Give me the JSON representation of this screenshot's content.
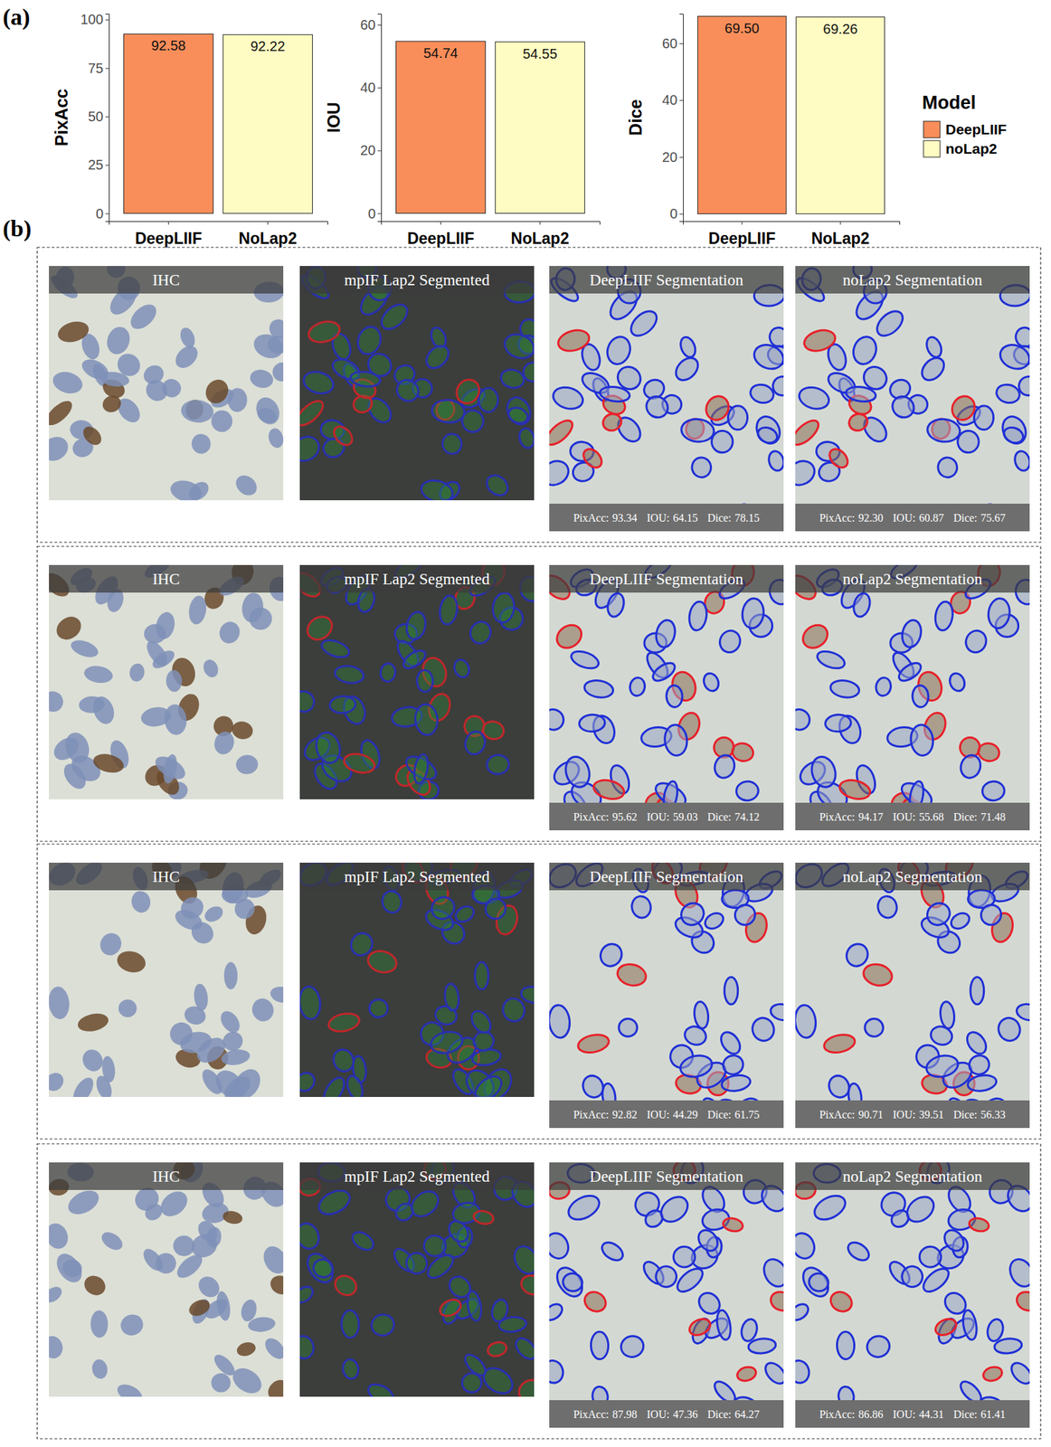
{
  "labels": {
    "a": "(a)",
    "b": "(b)"
  },
  "chart_data": [
    {
      "type": "bar",
      "y_label": "PixAcc",
      "categories": [
        "DeepLIIF",
        "NoLap2"
      ],
      "series": [
        {
          "color": "#f98e5a",
          "values": [
            92.58,
            null
          ]
        },
        {
          "color": "#fefbc3",
          "values": [
            null,
            92.22
          ]
        }
      ],
      "ylim": [
        -4,
        103
      ],
      "yticks": [
        0,
        25,
        50,
        75,
        100
      ],
      "data_labels": true
    },
    {
      "type": "bar",
      "y_label": "IOU",
      "categories": [
        "DeepLIIF",
        "NoLap2"
      ],
      "series": [
        {
          "color": "#f98e5a",
          "values": [
            54.74,
            null
          ]
        },
        {
          "color": "#fefbc3",
          "values": [
            null,
            54.55
          ]
        }
      ],
      "ylim": [
        -2.5,
        63.5
      ],
      "yticks": [
        0,
        20,
        40,
        60
      ],
      "data_labels": true
    },
    {
      "type": "bar",
      "y_label": "Dice",
      "categories": [
        "DeepLIIF",
        "NoLap2"
      ],
      "series": [
        {
          "name": "DeepLIIF",
          "color": "#f98e5a",
          "values": [
            69.5,
            null
          ]
        },
        {
          "name": "noLap2",
          "color": "#fefbc3",
          "values": [
            null,
            69.26
          ]
        }
      ],
      "ylim": [
        -2.6,
        70.4
      ],
      "yticks": [
        0,
        20,
        40,
        60
      ],
      "data_labels": true,
      "legend": "right",
      "legend_title": "Model"
    }
  ],
  "panel_b": {
    "rows": [
      {
        "panels": [
          {
            "title": "IHC"
          },
          {
            "title": "mpIF Lap2 Segmented"
          },
          {
            "title": "DeepLIIF Segmentation",
            "metric_labels": [
              "PixAcc:",
              "IOU:",
              "Dice:"
            ],
            "metrics": [
              93.34,
              64.15,
              78.15
            ]
          },
          {
            "title": "noLap2 Segmentation",
            "metric_labels": [
              "PixAcc:",
              "IOU:",
              "Dice:"
            ],
            "metrics": [
              92.3,
              60.87,
              75.67
            ]
          }
        ]
      },
      {
        "panels": [
          {
            "title": "IHC"
          },
          {
            "title": "mpIF Lap2 Segmented"
          },
          {
            "title": "DeepLIIF Segmentation",
            "metric_labels": [
              "PixAcc:",
              "IOU:",
              "Dice:"
            ],
            "metrics": [
              95.62,
              59.03,
              74.12
            ]
          },
          {
            "title": "noLap2 Segmentation",
            "metric_labels": [
              "PixAcc:",
              "IOU:",
              "Dice:"
            ],
            "metrics": [
              94.17,
              55.68,
              71.48
            ]
          }
        ]
      },
      {
        "panels": [
          {
            "title": "IHC"
          },
          {
            "title": "mpIF Lap2 Segmented"
          },
          {
            "title": "DeepLIIF Segmentation",
            "metric_labels": [
              "PixAcc:",
              "IOU:",
              "Dice:"
            ],
            "metrics": [
              92.82,
              44.29,
              61.75
            ]
          },
          {
            "title": "noLap2 Segmentation",
            "metric_labels": [
              "PixAcc:",
              "IOU:",
              "Dice:"
            ],
            "metrics": [
              90.71,
              39.51,
              56.33
            ]
          }
        ]
      },
      {
        "panels": [
          {
            "title": "IHC"
          },
          {
            "title": "mpIF Lap2 Segmented"
          },
          {
            "title": "DeepLIIF Segmentation",
            "metric_labels": [
              "PixAcc:",
              "IOU:",
              "Dice:"
            ],
            "metrics": [
              87.98,
              47.36,
              64.27
            ]
          },
          {
            "title": "noLap2 Segmentation",
            "metric_labels": [
              "PixAcc:",
              "IOU:",
              "Dice:"
            ],
            "metrics": [
              86.86,
              44.31,
              61.41
            ]
          }
        ]
      }
    ]
  }
}
